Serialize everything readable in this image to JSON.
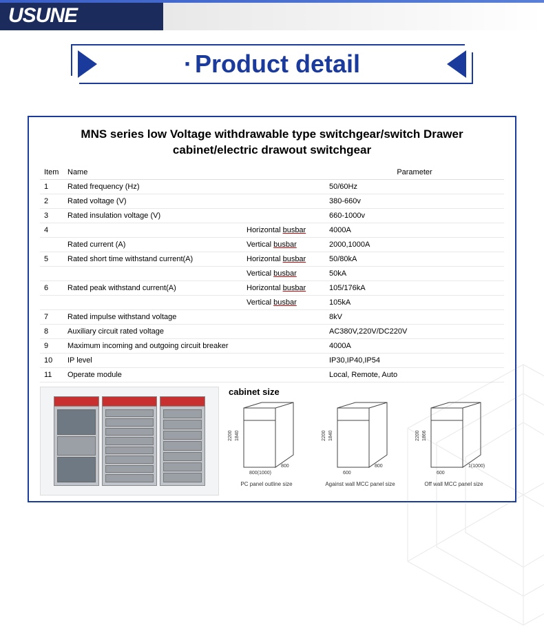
{
  "logo": "USUNE",
  "banner": {
    "title": "Product detail",
    "accent": "#1a3b9c"
  },
  "card": {
    "title": "MNS series low Voltage withdrawable type switchgear/switch Drawer cabinet/electric drawout switchgear",
    "columns": {
      "item": "Item",
      "name": "Name",
      "param": "Parameter"
    },
    "rows": [
      {
        "item": "1",
        "name": "Rated frequency (Hz)",
        "param": "50/60Hz"
      },
      {
        "item": "2",
        "name": "Rated voltage (V)",
        "param": "380-660v"
      },
      {
        "item": "3",
        "name": "Rated insulation voltage (V)",
        "param": "660-1000v"
      },
      {
        "item": "4",
        "name": "Rated current (A)",
        "subs": [
          {
            "sub": "Horizontal busbar",
            "param": "4000A"
          },
          {
            "sub": "Vertical busbar",
            "param": "2000,1000A"
          }
        ]
      },
      {
        "item": "5",
        "name": "Rated short time withstand current(A)",
        "subs": [
          {
            "sub": "Horizontal busbar",
            "param": "50/80kA"
          },
          {
            "sub": "Vertical busbar",
            "param": "50kA"
          }
        ]
      },
      {
        "item": "6",
        "name": "Rated peak withstand current(A)",
        "subs": [
          {
            "sub": "Horizontal busbar",
            "param": "105/176kA"
          },
          {
            "sub": "Vertical busbar",
            "param": "105kA"
          }
        ]
      },
      {
        "item": "7",
        "name": "Rated impulse withstand voltage",
        "param": "8kV"
      },
      {
        "item": "8",
        "name": "Auxiliary circuit rated voltage",
        "param": "AC380V,220V/DC220V"
      },
      {
        "item": "9",
        "name": "Maximum incoming and outgoing circuit breaker",
        "param": "4000A"
      },
      {
        "item": "10",
        "name": "IP level",
        "param": "IP30,IP40,IP54"
      },
      {
        "item": "11",
        "name": "Operate module",
        "param": "Local, Remote, Auto"
      }
    ],
    "underlined_word": "busbar"
  },
  "cabinet_sizes": {
    "title": "cabinet size",
    "items": [
      {
        "caption": "PC panel outline size",
        "h": "2200",
        "h2": "1840",
        "w": "800(1000)",
        "d": "800"
      },
      {
        "caption": "Against wall MCC panel size",
        "h": "2200",
        "h2": "1840",
        "w": "600",
        "d": "800"
      },
      {
        "caption": "Off wall MCC panel size",
        "h": "2200",
        "h2": "1866",
        "w": "600",
        "d": "1(1000)"
      }
    ]
  },
  "colors": {
    "accent": "#1a3b9c",
    "header_red": "#c83030",
    "cabinet_body": "#bfc5cb"
  }
}
